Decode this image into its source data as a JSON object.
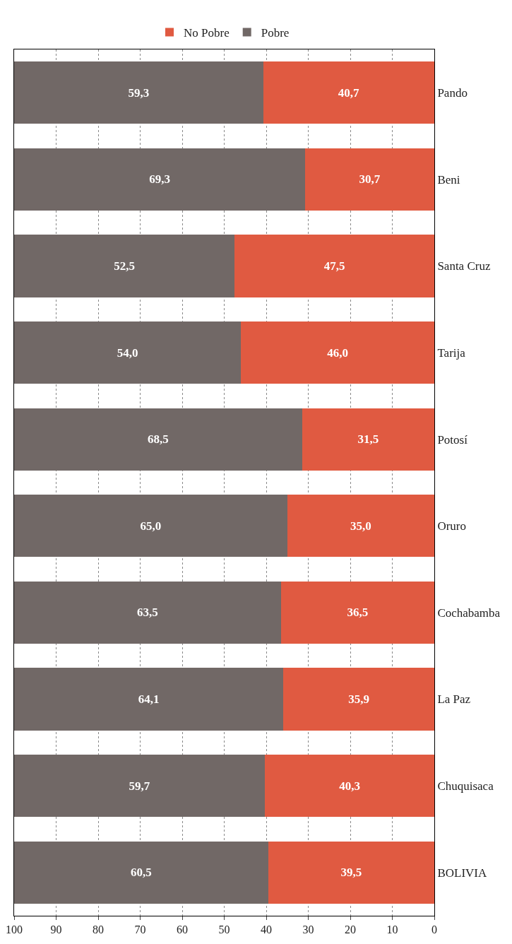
{
  "chart_data": {
    "type": "bar",
    "orientation": "horizontal",
    "stacked": true,
    "categories": [
      "Pando",
      "Beni",
      "Santa Cruz",
      "Tarija",
      "Potosí",
      "Oruro",
      "Cochabamba",
      "La Paz",
      "Chuquisaca",
      "BOLIVIA"
    ],
    "series": [
      {
        "name": "No Pobre",
        "color": "#e05a41",
        "values": [
          40.7,
          30.7,
          47.5,
          46.0,
          31.5,
          35.0,
          36.5,
          35.9,
          40.3,
          39.5
        ],
        "value_labels": [
          "40,7",
          "30,7",
          "47,5",
          "46,0",
          "31,5",
          "35,0",
          "36,5",
          "35,9",
          "40,3",
          "39,5"
        ]
      },
      {
        "name": "Pobre",
        "color": "#716866",
        "values": [
          59.3,
          69.3,
          52.5,
          54.0,
          68.5,
          65.0,
          63.5,
          64.1,
          59.7,
          60.5
        ],
        "value_labels": [
          "59,3",
          "69,3",
          "52,5",
          "54,0",
          "68,5",
          "65,0",
          "63,5",
          "64,1",
          "59,7",
          "60,5"
        ]
      }
    ],
    "xlim": [
      100,
      0
    ],
    "xticks": [
      0,
      10,
      20,
      30,
      40,
      50,
      60,
      70,
      80,
      90,
      100
    ],
    "grid": "x",
    "legend": "top"
  }
}
